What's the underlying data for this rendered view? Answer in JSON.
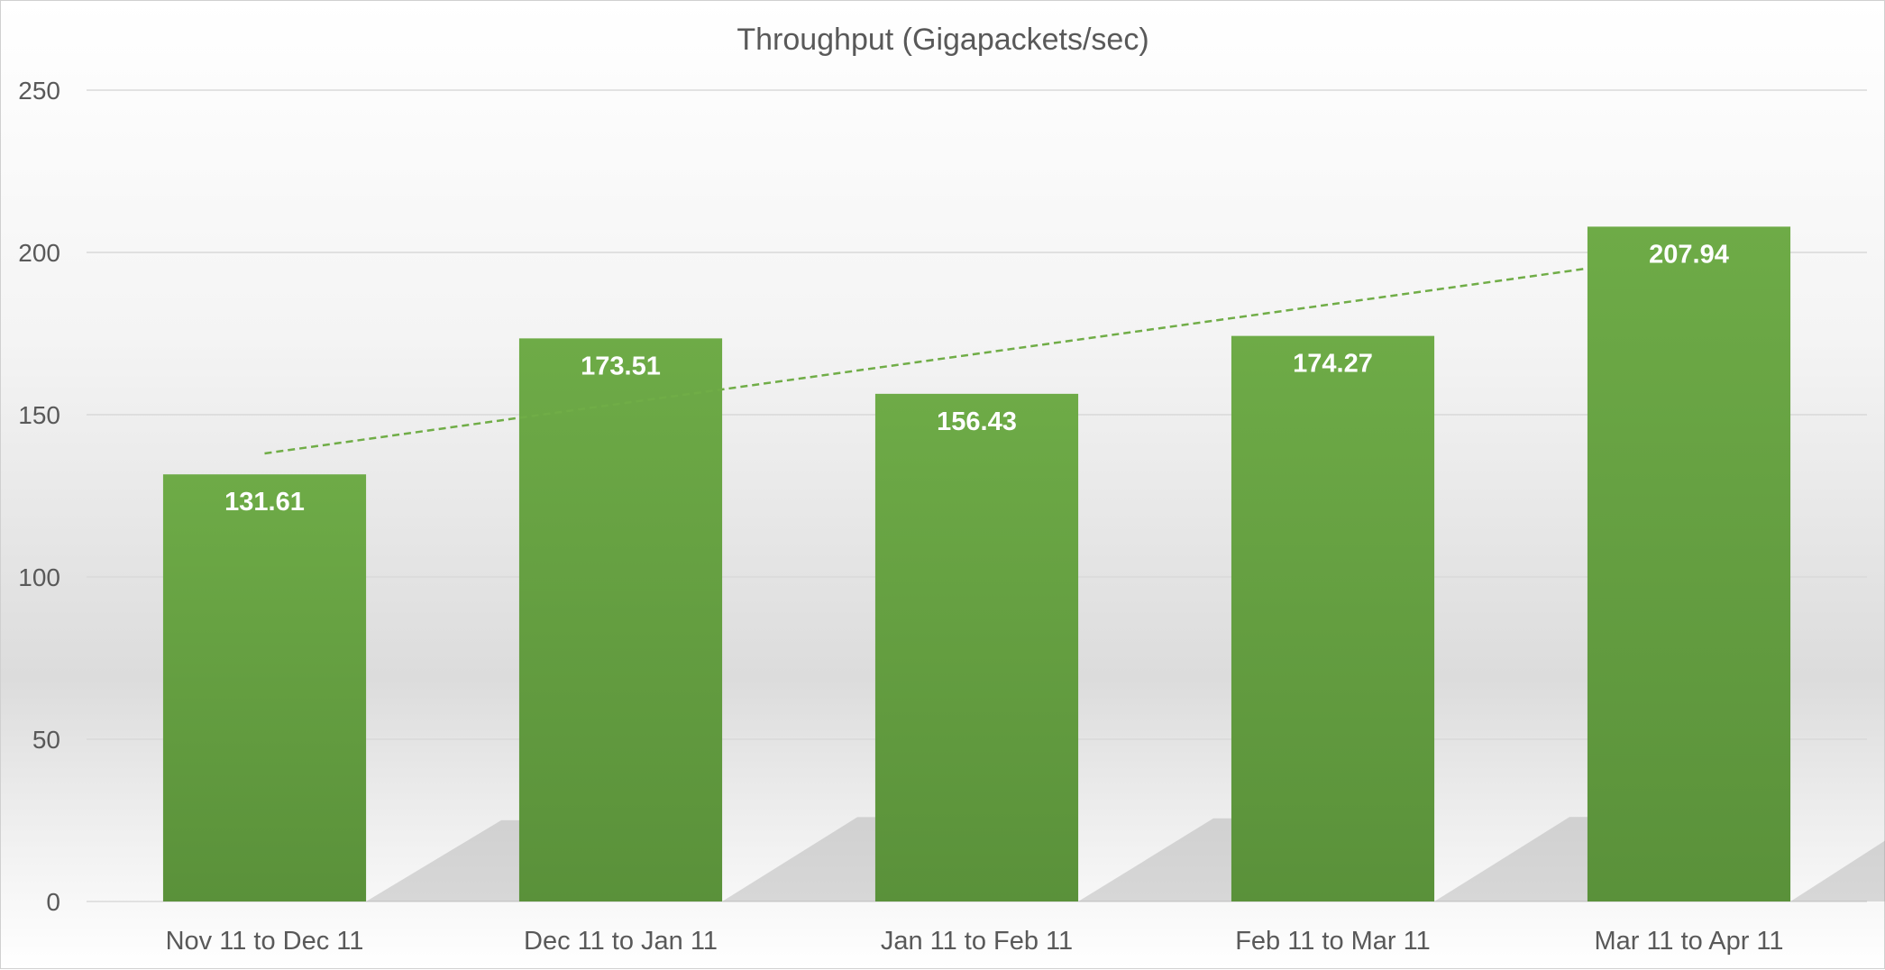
{
  "chart_data": {
    "type": "bar",
    "title": "Throughput (Gigapackets/sec)",
    "xlabel": "",
    "ylabel": "",
    "categories": [
      "Nov 11 to Dec 11",
      "Dec 11 to Jan 11",
      "Jan 11 to Feb 11",
      "Feb 11 to Mar 11",
      "Mar 11 to Apr 11"
    ],
    "values": [
      131.61,
      173.51,
      156.43,
      174.27,
      207.94
    ],
    "data_labels": [
      "131.61",
      "173.51",
      "156.43",
      "174.27",
      "207.94"
    ],
    "ylim": [
      0,
      250
    ],
    "yticks": [
      0,
      50,
      100,
      150,
      200,
      250
    ],
    "grid": true,
    "legend": "none",
    "trendline": {
      "type": "linear",
      "style": "dashed",
      "color": "#70ad47"
    },
    "colors": {
      "bar": "#6aa844",
      "bar_dark": "#5a913a",
      "label": "#ffffff",
      "grid": "#d9d9d9",
      "text": "#595959"
    }
  }
}
